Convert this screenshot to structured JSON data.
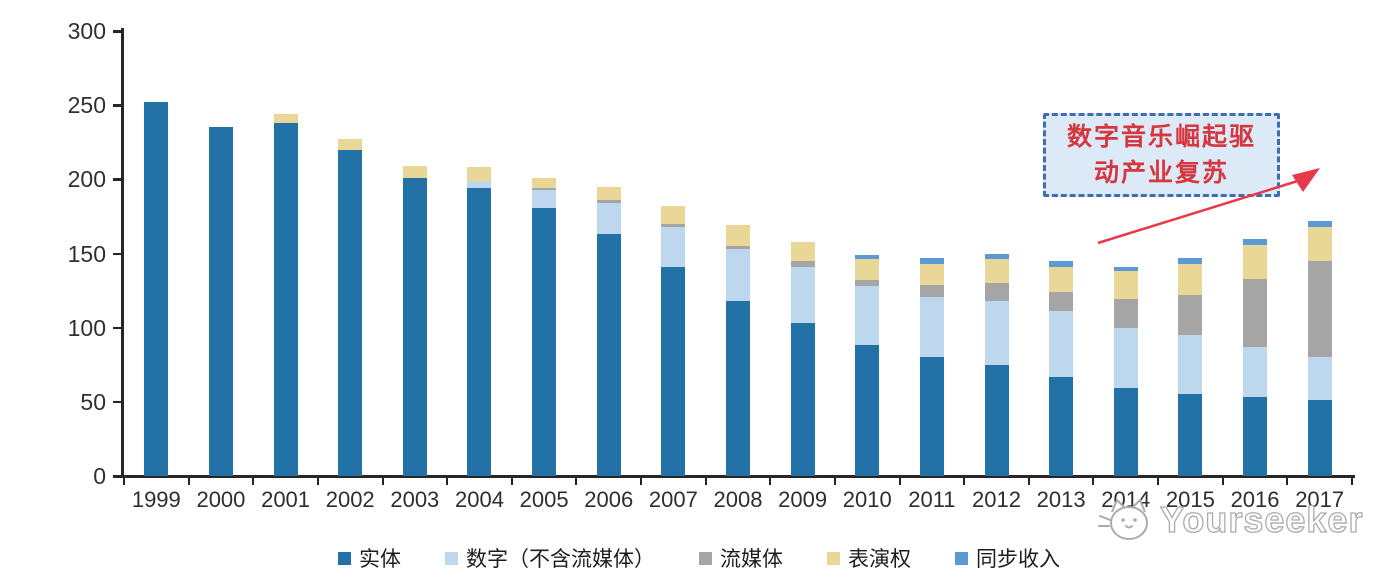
{
  "chart_data": {
    "type": "bar",
    "stacked": true,
    "title": "",
    "xlabel": "",
    "ylabel": "",
    "categories": [
      "1999",
      "2000",
      "2001",
      "2002",
      "2003",
      "2004",
      "2005",
      "2006",
      "2007",
      "2008",
      "2009",
      "2010",
      "2011",
      "2012",
      "2013",
      "2014",
      "2015",
      "2016",
      "2017"
    ],
    "series": [
      {
        "name": "实体",
        "key": "physical",
        "color": "#2271A7",
        "values": [
          252,
          235,
          238,
          220,
          201,
          194,
          181,
          163,
          141,
          118,
          103,
          88,
          80,
          75,
          67,
          59,
          55,
          53,
          51
        ]
      },
      {
        "name": "数字（不含流媒体）",
        "key": "digital",
        "color": "#BDD7EE",
        "values": [
          0,
          0,
          0,
          0,
          0,
          5,
          12,
          21,
          27,
          35,
          38,
          40,
          41,
          43,
          44,
          41,
          40,
          34,
          29
        ]
      },
      {
        "name": "流媒体",
        "key": "streaming",
        "color": "#A5A5A5",
        "values": [
          0,
          0,
          0,
          0,
          0,
          0,
          1,
          2,
          2,
          2,
          4,
          4,
          8,
          12,
          13,
          19,
          27,
          46,
          65
        ]
      },
      {
        "name": "表演权",
        "key": "performance",
        "color": "#E8D797",
        "values": [
          0,
          0,
          6,
          7,
          8,
          9,
          7,
          9,
          12,
          14,
          13,
          14,
          14,
          16,
          17,
          19,
          21,
          23,
          23
        ]
      },
      {
        "name": "同步收入",
        "key": "sync",
        "color": "#5B9BD5",
        "values": [
          0,
          0,
          0,
          0,
          0,
          0,
          0,
          0,
          0,
          0,
          0,
          3,
          4,
          4,
          4,
          3,
          4,
          4,
          4
        ]
      }
    ],
    "ylim": [
      0,
      300
    ],
    "y_ticks": [
      0,
      50,
      100,
      150,
      200,
      250,
      300
    ],
    "grid": false,
    "legend_position": "bottom"
  },
  "annotation": {
    "text": "数字音乐崛起驱\n动产业复苏",
    "text_color": "#d6373f",
    "box_fill": "#dce9f7",
    "box_border": "#3c6db5",
    "arrow_color": "#e8394a"
  },
  "watermark": {
    "text": "Yourseeker"
  }
}
